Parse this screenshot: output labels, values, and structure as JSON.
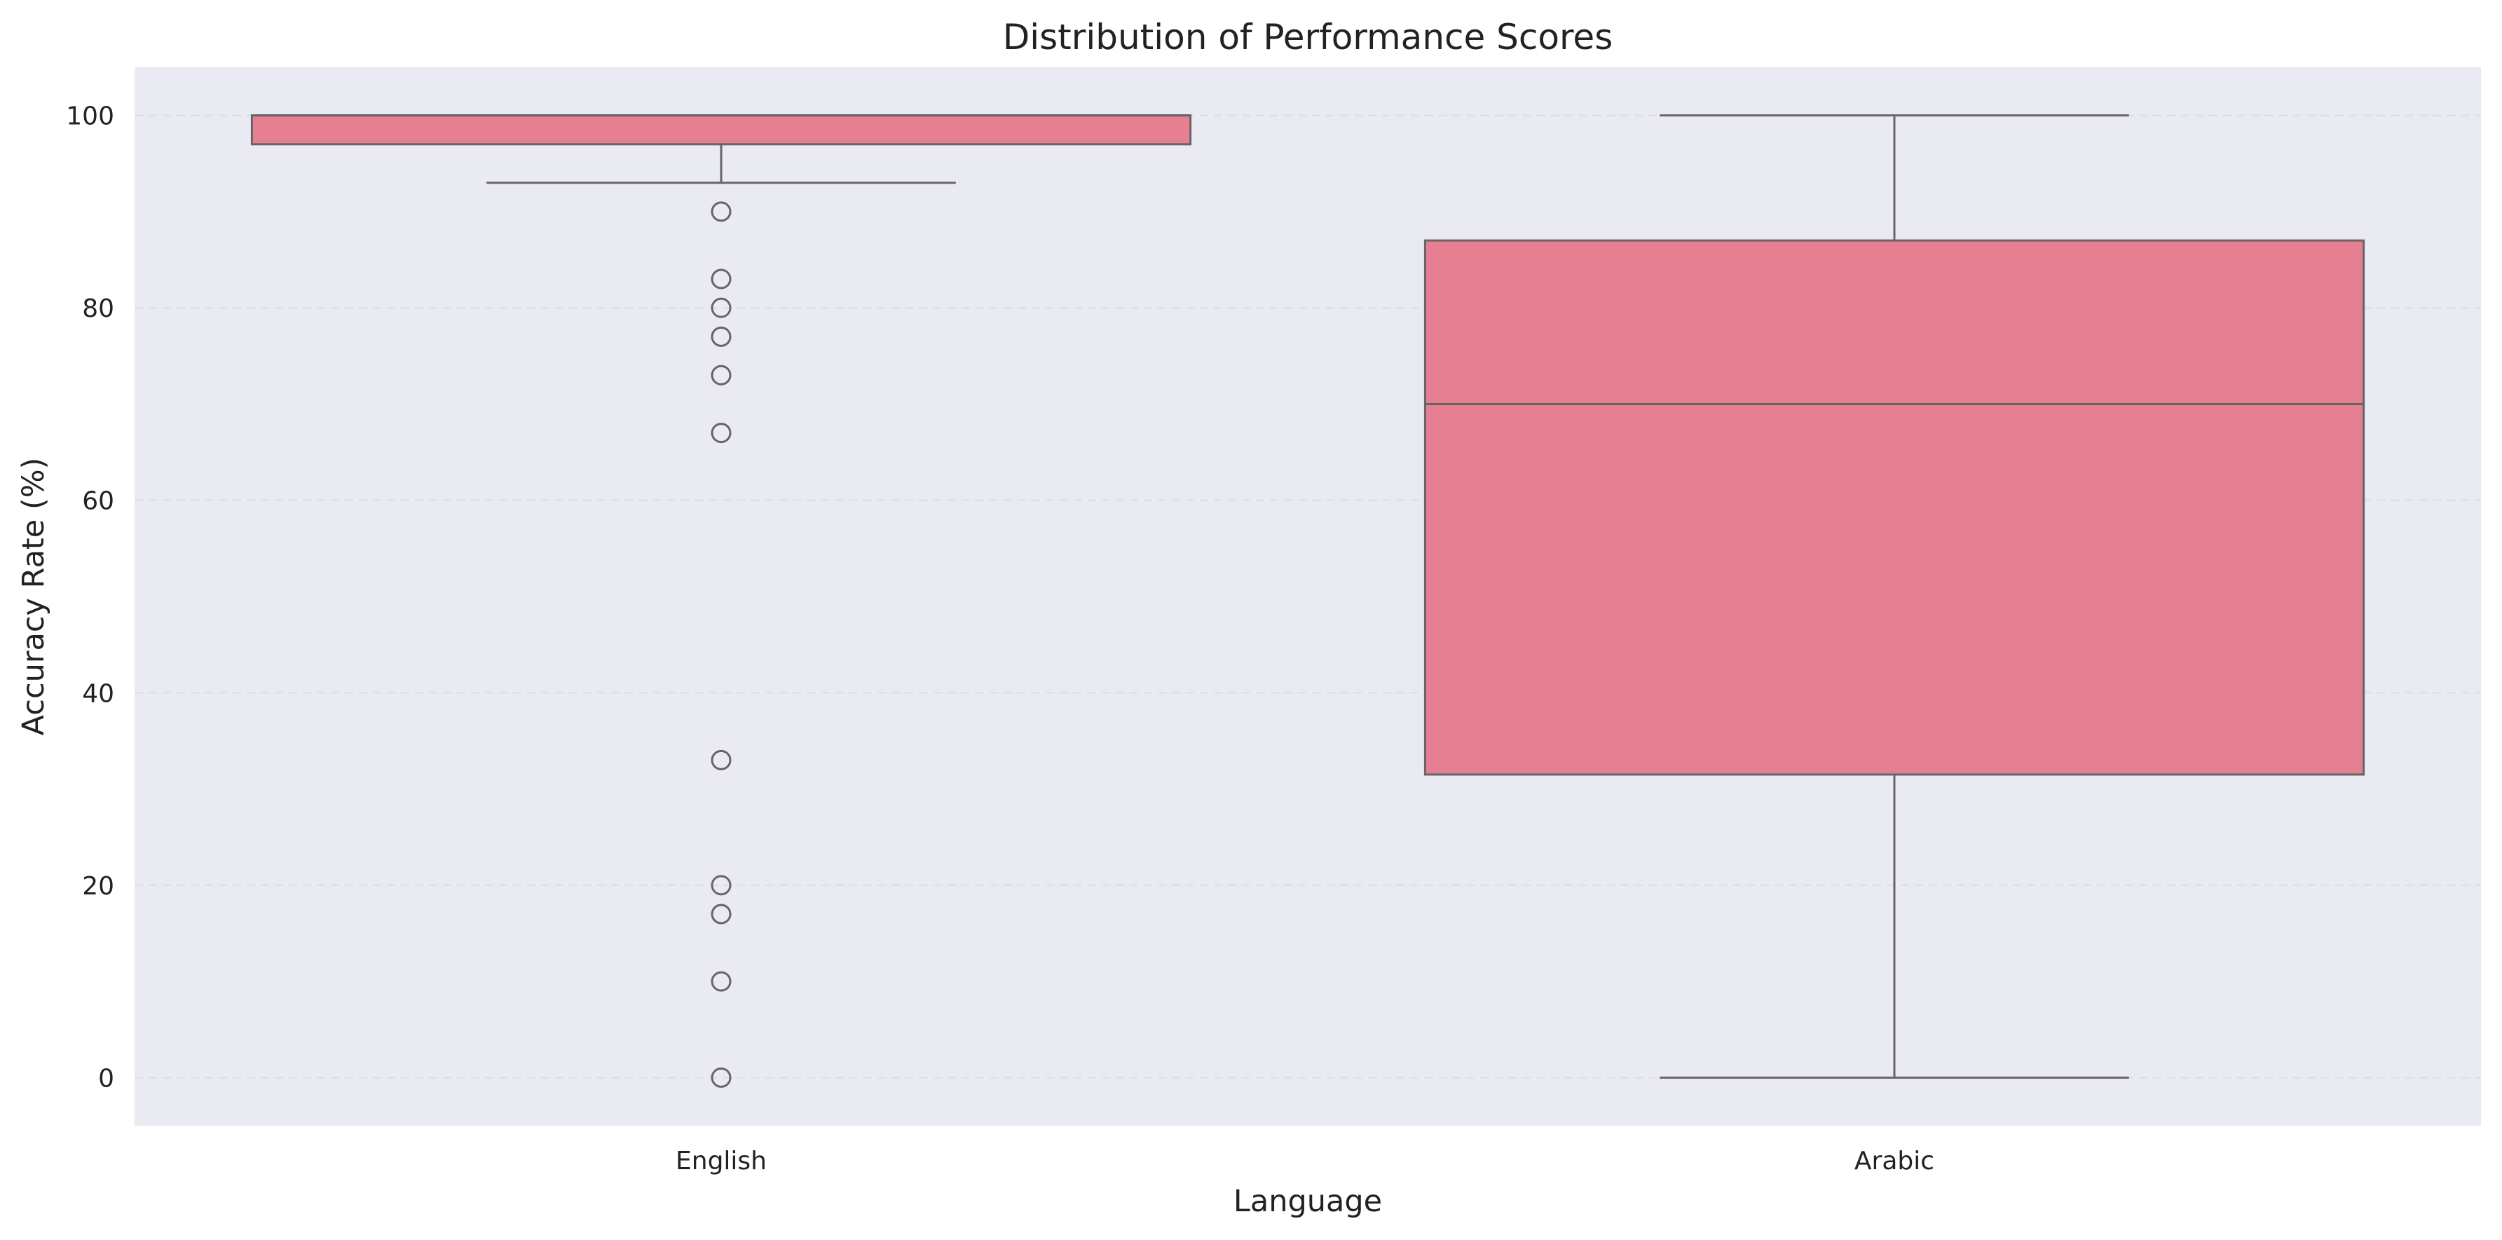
{
  "chart_data": {
    "type": "box",
    "title": "Distribution of Performance Scores",
    "xlabel": "Language",
    "ylabel": "Accuracy Rate (%)",
    "categories": [
      "English",
      "Arabic"
    ],
    "ylim": [
      -5,
      105
    ],
    "yticks": [
      0,
      20,
      40,
      60,
      80,
      100
    ],
    "grid": true,
    "legend": "none",
    "boxes": [
      {
        "category": "English",
        "whisker_low": 93,
        "q1": 97,
        "median": 100,
        "q3": 100,
        "whisker_high": 100,
        "outliers": [
          90,
          83,
          80,
          77,
          73,
          67,
          33,
          20,
          17,
          10,
          0
        ]
      },
      {
        "category": "Arabic",
        "whisker_low": 0,
        "q1": 31.5,
        "median": 70,
        "q3": 87,
        "whisker_high": 100,
        "outliers": []
      }
    ]
  },
  "colors": {
    "plot_background": "#eaeaf2",
    "box_fill": "#e77f92",
    "line": "#666666",
    "grid": "#dcdce6",
    "text": "#222222"
  }
}
